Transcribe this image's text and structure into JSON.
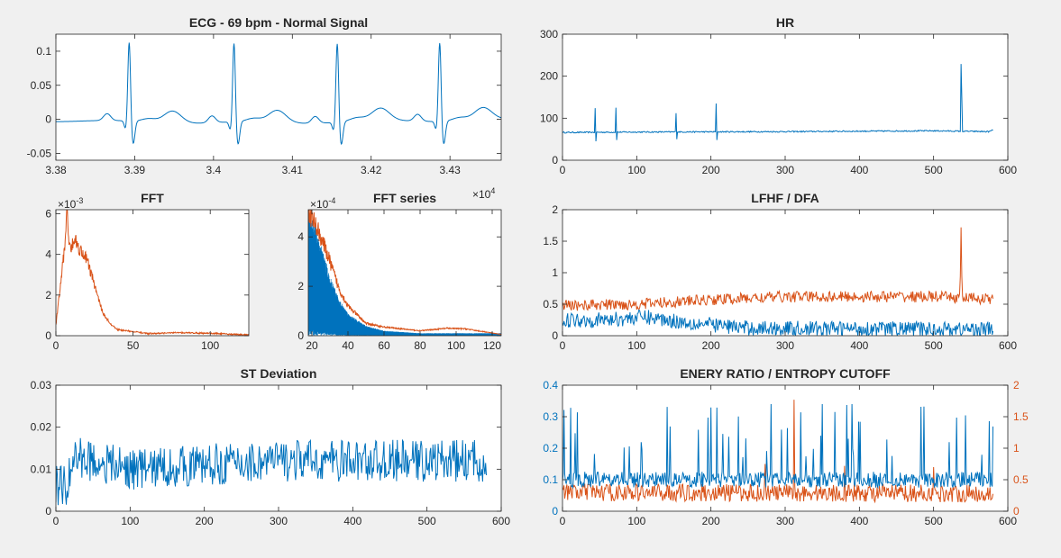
{
  "figure": {
    "background": "#f0f0f0"
  },
  "colors": {
    "series1": "#0072bd",
    "series2": "#d95319",
    "axis": "#262626"
  },
  "chart_data": [
    {
      "id": "ecg",
      "type": "line",
      "title": "ECG - 69 bpm - Normal Signal",
      "xlim": [
        3.38,
        3.4365
      ],
      "ylim": [
        -0.06,
        0.125
      ],
      "xticks": [
        3.38,
        3.39,
        3.4,
        3.41,
        3.42,
        3.43
      ],
      "xticklabels": [
        "3.38",
        "3.39",
        "3.4",
        "3.41",
        "3.42",
        "3.43"
      ],
      "yticks": [
        -0.05,
        0,
        0.05,
        0.1
      ],
      "yticklabels": [
        "-0.05",
        "0",
        "0.05",
        "0.1"
      ],
      "series": [
        {
          "color": "#0072bd",
          "kind": "ecg",
          "beats": [
            3.3893,
            3.4026,
            3.4157,
            3.4287
          ]
        }
      ]
    },
    {
      "id": "hr",
      "type": "line",
      "title": "HR",
      "xlim": [
        0,
        600
      ],
      "ylim": [
        0,
        300
      ],
      "xticks": [
        0,
        100,
        200,
        300,
        400,
        500,
        600
      ],
      "xticklabels": [
        "0",
        "100",
        "200",
        "300",
        "400",
        "500",
        "600"
      ],
      "yticks": [
        0,
        100,
        200,
        300
      ],
      "yticklabels": [
        "0",
        "100",
        "200",
        "300"
      ],
      "series": [
        {
          "color": "#0072bd",
          "kind": "hr",
          "n": 580,
          "base": [
            [
              0,
              66
            ],
            [
              100,
              67
            ],
            [
              300,
              68
            ],
            [
              500,
              70
            ],
            [
              575,
              68
            ],
            [
              580,
              72
            ]
          ],
          "spikes": [
            [
              44,
              124,
              45
            ],
            [
              72,
              125,
              48
            ],
            [
              153,
              112,
              50
            ],
            [
              207,
              135,
              48
            ],
            [
              537,
              229,
              150
            ]
          ]
        }
      ]
    },
    {
      "id": "fft",
      "type": "line",
      "title": "FFT",
      "xlim": [
        0,
        125
      ],
      "ylim": [
        0,
        0.0062
      ],
      "xticks": [
        0,
        50,
        100
      ],
      "xticklabels": [
        "0",
        "50",
        "100"
      ],
      "yticks": [
        0,
        0.002,
        0.004,
        0.006
      ],
      "yticklabels": [
        "0",
        "2",
        "4",
        "6"
      ],
      "exponent": "-3",
      "series": [
        {
          "color": "#d95319",
          "kind": "profile",
          "profile": [
            [
              0,
              0.0005
            ],
            [
              3,
              0.0025
            ],
            [
              6,
              0.0046
            ],
            [
              7,
              0.0062
            ],
            [
              9,
              0.0043
            ],
            [
              12,
              0.0048
            ],
            [
              15,
              0.0043
            ],
            [
              20,
              0.0038
            ],
            [
              25,
              0.0025
            ],
            [
              30,
              0.0012
            ],
            [
              35,
              0.0006
            ],
            [
              40,
              0.0003
            ],
            [
              50,
              0.0002
            ],
            [
              60,
              0.0001
            ],
            [
              80,
              0.00015
            ],
            [
              100,
              0.00012
            ],
            [
              120,
              5e-05
            ]
          ]
        }
      ]
    },
    {
      "id": "fftseries",
      "type": "line",
      "title": "FFT series",
      "xlim": [
        18,
        125
      ],
      "ylim": [
        0,
        0.00051
      ],
      "xticks": [
        20,
        40,
        60,
        80,
        100,
        120
      ],
      "xticklabels": [
        "20",
        "40",
        "60",
        "80",
        "100",
        "120"
      ],
      "yticks": [
        0,
        0.0002,
        0.0004
      ],
      "yticklabels": [
        "0",
        "2",
        "4"
      ],
      "exponent": "-4",
      "xexponent": "4",
      "series": [
        {
          "color": "#0072bd",
          "kind": "dense",
          "profile": [
            [
              18,
              0.00051
            ],
            [
              22,
              0.00045
            ],
            [
              26,
              0.00035
            ],
            [
              30,
              0.00024
            ],
            [
              35,
              0.00015
            ],
            [
              40,
              9e-05
            ],
            [
              50,
              4e-05
            ],
            [
              60,
              2e-05
            ],
            [
              80,
              1e-05
            ],
            [
              100,
              1e-05
            ],
            [
              125,
              1e-05
            ]
          ]
        },
        {
          "color": "#d95319",
          "kind": "envelope",
          "profile": [
            [
              18,
              0.0005
            ],
            [
              22,
              0.00045
            ],
            [
              26,
              0.00038
            ],
            [
              30,
              0.0003
            ],
            [
              35,
              0.00019
            ],
            [
              40,
              0.00012
            ],
            [
              50,
              5e-05
            ],
            [
              60,
              3.5e-05
            ],
            [
              80,
              2e-05
            ],
            [
              95,
              3e-05
            ],
            [
              105,
              2.8e-05
            ],
            [
              125,
              5e-06
            ]
          ]
        }
      ]
    },
    {
      "id": "lfhf",
      "type": "line",
      "title": "LFHF / DFA",
      "xlim": [
        0,
        600
      ],
      "ylim": [
        0,
        2
      ],
      "xticks": [
        0,
        100,
        200,
        300,
        400,
        500,
        600
      ],
      "xticklabels": [
        "0",
        "100",
        "200",
        "300",
        "400",
        "500",
        "600"
      ],
      "yticks": [
        0,
        0.5,
        1,
        1.5,
        2
      ],
      "yticklabels": [
        "0",
        "0.5",
        "1",
        "1.5",
        "2"
      ],
      "series": [
        {
          "color": "#0072bd",
          "kind": "noise",
          "n": 580,
          "base": [
            [
              0,
              0.25
            ],
            [
              60,
              0.25
            ],
            [
              110,
              0.3
            ],
            [
              160,
              0.22
            ],
            [
              250,
              0.12
            ],
            [
              580,
              0.1
            ]
          ],
          "amp": 0.12
        },
        {
          "color": "#d95319",
          "kind": "noise",
          "n": 580,
          "base": [
            [
              0,
              0.48
            ],
            [
              100,
              0.5
            ],
            [
              200,
              0.57
            ],
            [
              300,
              0.62
            ],
            [
              500,
              0.62
            ],
            [
              580,
              0.58
            ]
          ],
          "amp": 0.09,
          "spikes": [
            [
              537,
              1.72,
              25
            ]
          ]
        }
      ]
    },
    {
      "id": "st",
      "type": "line",
      "title": "ST Deviation",
      "xlim": [
        0,
        600
      ],
      "ylim": [
        0,
        0.03
      ],
      "xticks": [
        0,
        100,
        200,
        300,
        400,
        500,
        600
      ],
      "xticklabels": [
        "0",
        "100",
        "200",
        "300",
        "400",
        "500",
        "600"
      ],
      "yticks": [
        0,
        0.01,
        0.02,
        0.03
      ],
      "yticklabels": [
        "0",
        "0.01",
        "0.02",
        "0.03"
      ],
      "series": [
        {
          "color": "#0072bd",
          "kind": "noise",
          "n": 580,
          "base": [
            [
              0,
              0.006
            ],
            [
              15,
              0.006
            ],
            [
              25,
              0.013
            ],
            [
              100,
              0.01
            ],
            [
              300,
              0.012
            ],
            [
              580,
              0.012
            ]
          ],
          "amp": 0.005
        }
      ]
    },
    {
      "id": "energy",
      "type": "line",
      "title": "ENERY RATIO / ENTROPY CUTOFF",
      "xlim": [
        0,
        600
      ],
      "ylim": [
        0,
        0.4
      ],
      "ylim2": [
        0,
        2
      ],
      "xticks": [
        0,
        100,
        200,
        300,
        400,
        500,
        600
      ],
      "xticklabels": [
        "0",
        "100",
        "200",
        "300",
        "400",
        "500",
        "600"
      ],
      "yticks": [
        0,
        0.1,
        0.2,
        0.3,
        0.4
      ],
      "yticklabels": [
        "0",
        "0.1",
        "0.2",
        "0.3",
        "0.4"
      ],
      "yticks2": [
        0,
        0.5,
        1,
        1.5,
        2
      ],
      "yticklabels2": [
        "0",
        "0.5",
        "1",
        "1.5",
        "2"
      ],
      "series": [
        {
          "color": "#d95319",
          "kind": "noise",
          "axis": "right",
          "n": 580,
          "base": [
            [
              0,
              0.3
            ],
            [
              580,
              0.28
            ]
          ],
          "amp": 0.14,
          "spikes": [
            [
              312,
              1.77,
              8
            ],
            [
              273,
              0.75,
              10
            ],
            [
              380,
              0.72,
              10
            ],
            [
              500,
              0.7,
              10
            ]
          ]
        },
        {
          "color": "#0072bd",
          "kind": "bursts",
          "axis": "left",
          "n": 580,
          "base": [
            [
              0,
              0.1
            ],
            [
              580,
              0.1
            ]
          ],
          "amp": 0.025
        }
      ]
    }
  ]
}
